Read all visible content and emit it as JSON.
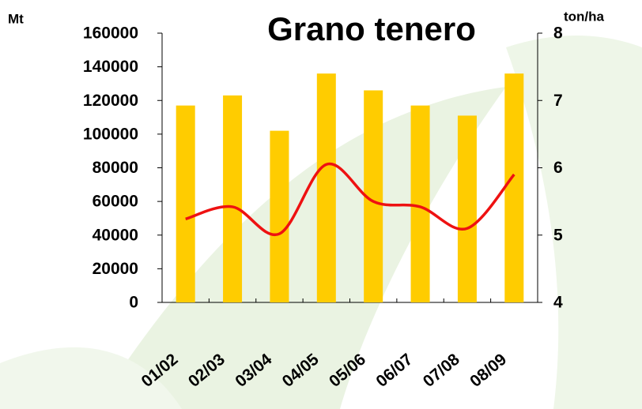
{
  "chart_data": {
    "type": "bar-line",
    "title": "Grano tenero",
    "y_label": "Mt",
    "y2_label": "ton/ha",
    "categories": [
      "01/02",
      "02/03",
      "03/04",
      "04/05",
      "05/06",
      "06/07",
      "07/08",
      "08/09"
    ],
    "series": [
      {
        "type": "bar",
        "color": "#ffcc00",
        "values": [
          117000,
          123000,
          102000,
          136000,
          126000,
          117000,
          111000,
          136000
        ]
      },
      {
        "type": "line",
        "axis": "y2",
        "color": "#ee1111",
        "values": [
          5.24,
          5.42,
          5.02,
          6.05,
          5.5,
          5.42,
          5.1,
          5.9
        ]
      }
    ],
    "ylim": [
      0,
      160000
    ],
    "yticks": [
      0,
      20000,
      40000,
      60000,
      80000,
      100000,
      120000,
      140000,
      160000
    ],
    "y2lim": [
      4,
      8
    ],
    "y2ticks": [
      4,
      5,
      6,
      7,
      8
    ]
  }
}
